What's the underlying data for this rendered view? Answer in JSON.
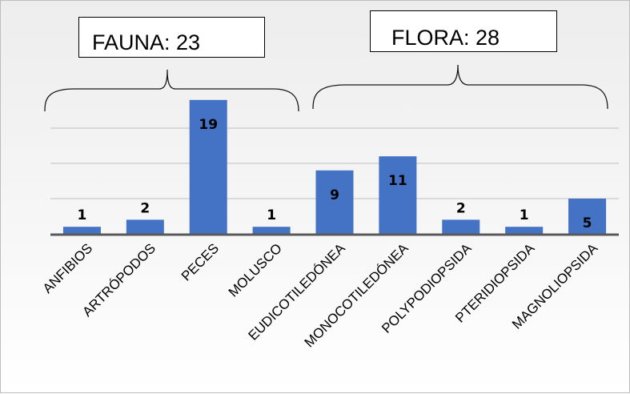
{
  "chart_data": {
    "type": "bar",
    "categories": [
      "ANFIBIOS",
      "ARTRÓPODOS",
      "PECES",
      "MOLUSCO",
      "EUDICOTILEDÓNEA",
      "MONOCOTILEDÓNEA",
      "POLYPODIOPSIDA",
      "PTERIDIOPSIDA",
      "MAGNOLIOPSIDA"
    ],
    "values": [
      1,
      2,
      19,
      1,
      9,
      11,
      2,
      1,
      5
    ],
    "data_labels": [
      "1",
      "2",
      "19",
      "1",
      "9",
      "11",
      "2",
      "1",
      "5"
    ],
    "title": "",
    "xlabel": "",
    "ylabel": "",
    "ylim": [
      0,
      20
    ],
    "grid": true,
    "legend": "none",
    "bar_color": "#4472C4",
    "axis_color": "#595959",
    "gridline_color": "#bfbfbf",
    "groups": [
      {
        "label": "FAUNA: 23",
        "categories": [
          "ANFIBIOS",
          "ARTRÓPODOS",
          "PECES",
          "MOLUSCO"
        ]
      },
      {
        "label": "FLORA: 28",
        "categories": [
          "EUDICOTILEDÓNEA",
          "MONOCOTILEDÓNEA",
          "POLYPODIOPSIDA",
          "PTERIDIOPSIDA",
          "MAGNOLIOPSIDA"
        ]
      }
    ]
  }
}
